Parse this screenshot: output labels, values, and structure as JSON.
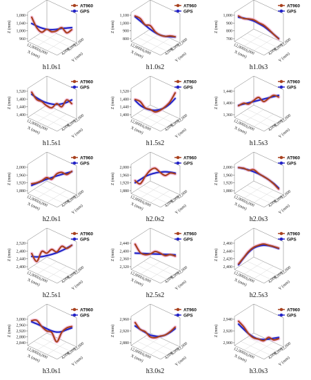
{
  "legend": {
    "series_a": "AT960",
    "series_b": "GPS"
  },
  "colors": {
    "at960": "#a8411e",
    "gps": "#2323c8",
    "halo": "#f4b7d9",
    "box": "#777777"
  },
  "chart_data": [
    {
      "type": "line",
      "title": "h1.0s1",
      "zlabel": "Z (mm)",
      "xlabel": "X (mm)",
      "ylabel": "Y (mm)",
      "zticks": [
        "1,080",
        "1,040",
        "1,000",
        "960"
      ],
      "xticks": [
        "12,000",
        "16,000"
      ],
      "yticks": [
        "12,000",
        "8,000",
        "4,000"
      ],
      "zlim": [
        960,
        1080
      ],
      "series": [
        {
          "name": "AT960",
          "values": [
            1070,
            1020,
            998,
            1012,
            1000,
            1005,
            1020,
            995,
            1010
          ]
        },
        {
          "name": "GPS",
          "values": [
            1040,
            1028,
            1018,
            1012,
            1010,
            1012,
            1016,
            1018,
            1020
          ]
        }
      ]
    },
    {
      "type": "line",
      "title": "h1.0s2",
      "zlabel": "Z (mm)",
      "xlabel": "X (mm)",
      "ylabel": "Y (mm)",
      "zticks": [
        "1,100",
        "1,000",
        "900",
        "800"
      ],
      "xticks": [
        "12,000",
        "16,000"
      ],
      "yticks": [
        "12,000",
        "8,000",
        "4,000"
      ],
      "zlim": [
        800,
        1100
      ],
      "series": [
        {
          "name": "AT960",
          "values": [
            1090,
            1060,
            985,
            975,
            900,
            860,
            845,
            850,
            840
          ]
        },
        {
          "name": "GPS",
          "values": [
            1080,
            1030,
            980,
            930,
            890,
            860,
            845,
            840,
            838
          ]
        }
      ]
    },
    {
      "type": "line",
      "title": "h1.0s3",
      "zlabel": "Z (mm)",
      "xlabel": "X (mm)",
      "ylabel": "Y (mm)",
      "zticks": [
        "1,000",
        "900",
        "800",
        "700"
      ],
      "xticks": [
        "12,000",
        "16,000"
      ],
      "yticks": [
        "12,000",
        "8,000",
        "4,000"
      ],
      "zlim": [
        700,
        1000
      ],
      "series": [
        {
          "name": "AT960",
          "values": [
            990,
            960,
            955,
            945,
            910,
            880,
            830,
            770,
            715
          ]
        },
        {
          "name": "GPS",
          "values": [
            975,
            965,
            950,
            930,
            900,
            865,
            820,
            770,
            720
          ]
        }
      ]
    },
    {
      "type": "line",
      "title": "h1.5s1",
      "zlabel": "Z (mm)",
      "xlabel": "X (mm)",
      "ylabel": "Y (mm)",
      "zticks": [
        "1,520",
        "1,480",
        "1,440",
        "1,400"
      ],
      "xticks": [
        "12,000",
        "16,000"
      ],
      "yticks": [
        "12,000",
        "8,000",
        "4,000"
      ],
      "zlim": [
        1400,
        1520
      ],
      "series": [
        {
          "name": "AT960",
          "values": [
            1515,
            1480,
            1470,
            1450,
            1440,
            1460,
            1445,
            1478,
            1460
          ]
        },
        {
          "name": "GPS",
          "values": [
            1505,
            1488,
            1474,
            1464,
            1458,
            1456,
            1459,
            1466,
            1478
          ]
        }
      ]
    },
    {
      "type": "line",
      "title": "h1.5s2",
      "zlabel": "Z (mm)",
      "xlabel": "X (mm)",
      "ylabel": "Y (mm)",
      "zticks": [
        "1,520",
        "1,480",
        "1,440",
        "1,400"
      ],
      "xticks": [
        "12,000",
        "16,000"
      ],
      "yticks": [
        "12,000",
        "8,000",
        "4,000"
      ],
      "zlim": [
        1400,
        1520
      ],
      "series": [
        {
          "name": "AT960",
          "values": [
            1480,
            1470,
            1440,
            1432,
            1420,
            1428,
            1445,
            1470,
            1512
          ]
        },
        {
          "name": "GPS",
          "values": [
            1475,
            1452,
            1438,
            1430,
            1428,
            1432,
            1442,
            1460,
            1485
          ]
        }
      ]
    },
    {
      "type": "line",
      "title": "h1.5s3",
      "zlabel": "Z (mm)",
      "xlabel": "X (mm)",
      "ylabel": "Y (mm)",
      "zticks": [
        "1,440",
        "1,400",
        "1,360"
      ],
      "xticks": [
        "12,000",
        "16,000"
      ],
      "yticks": [
        "12,000",
        "8,000",
        "4,000"
      ],
      "zlim": [
        1340,
        1460
      ],
      "series": [
        {
          "name": "AT960",
          "values": [
            1390,
            1402,
            1398,
            1415,
            1430,
            1410,
            1425,
            1440,
            1432
          ]
        },
        {
          "name": "GPS",
          "values": [
            1392,
            1398,
            1404,
            1410,
            1416,
            1422,
            1428,
            1434,
            1440
          ]
        }
      ]
    },
    {
      "type": "line",
      "title": "h2.0s1",
      "zlabel": "Z (mm)",
      "xlabel": "X (mm)",
      "ylabel": "Y (mm)",
      "zticks": [
        "2,000",
        "1,960",
        "1,920",
        "1,880"
      ],
      "xticks": [
        "12,000",
        "16,000"
      ],
      "yticks": [
        "12,000",
        "8,000",
        "4,000"
      ],
      "zlim": [
        1880,
        2000
      ],
      "series": [
        {
          "name": "AT960",
          "values": [
            1920,
            1925,
            1935,
            1950,
            1942,
            1968,
            1975,
            1965,
            1980
          ]
        },
        {
          "name": "GPS",
          "values": [
            1912,
            1922,
            1932,
            1942,
            1950,
            1958,
            1965,
            1972,
            1978
          ]
        }
      ]
    },
    {
      "type": "line",
      "title": "h2.0s2",
      "zlabel": "Z (mm)",
      "xlabel": "X (mm)",
      "ylabel": "Y (mm)",
      "zticks": [
        "2,000",
        "1,960",
        "1,920",
        "1,880"
      ],
      "xticks": [
        "12,000",
        "16,000"
      ],
      "yticks": [
        "12,000",
        "8,000",
        "4,000"
      ],
      "zlim": [
        1880,
        2000
      ],
      "series": [
        {
          "name": "AT960",
          "values": [
            1935,
            1920,
            1955,
            1985,
            1995,
            1975,
            1960,
            1972,
            1968
          ]
        },
        {
          "name": "GPS",
          "values": [
            1925,
            1940,
            1955,
            1965,
            1972,
            1976,
            1978,
            1976,
            1972
          ]
        }
      ]
    },
    {
      "type": "line",
      "title": "h2.0s3",
      "zlabel": "Z (mm)",
      "xlabel": "X (mm)",
      "ylabel": "Y (mm)",
      "zticks": [
        "2,000",
        "1,960",
        "1,920",
        "1,880"
      ],
      "xticks": [
        "12,000",
        "16,000"
      ],
      "yticks": [
        "12,000",
        "8,000",
        "4,000"
      ],
      "zlim": [
        1880,
        2000
      ],
      "series": [
        {
          "name": "AT960",
          "values": [
            1998,
            1995,
            1985,
            1988,
            1970,
            1955,
            1940,
            1920,
            1895
          ]
        },
        {
          "name": "GPS",
          "values": [
            1998,
            1993,
            1987,
            1978,
            1968,
            1955,
            1940,
            1922,
            1900
          ]
        }
      ]
    },
    {
      "type": "line",
      "title": "h2.5s1",
      "zlabel": "Z (mm)",
      "xlabel": "X (mm)",
      "ylabel": "Y (mm)",
      "zticks": [
        "2,520",
        "2,480",
        "2,440",
        "2,400"
      ],
      "xticks": [
        "12,000",
        "16,000"
      ],
      "yticks": [
        "12,000",
        "8,000",
        "4,000"
      ],
      "zlim": [
        2400,
        2520
      ],
      "series": [
        {
          "name": "AT960",
          "values": [
            2470,
            2432,
            2480,
            2472,
            2490,
            2478,
            2505,
            2495,
            2510
          ]
        },
        {
          "name": "GPS",
          "values": [
            2456,
            2454,
            2455,
            2460,
            2466,
            2474,
            2484,
            2496,
            2510
          ]
        }
      ]
    },
    {
      "type": "line",
      "title": "h2.5s2",
      "zlabel": "Z (mm)",
      "xlabel": "X (mm)",
      "ylabel": "Y (mm)",
      "zticks": [
        "2,440",
        "2,400",
        "2,360",
        "2,320"
      ],
      "xticks": [
        "12,000",
        "16,000"
      ],
      "yticks": [
        "12,000",
        "8,000",
        "4,000"
      ],
      "zlim": [
        2320,
        2440
      ],
      "series": [
        {
          "name": "AT960",
          "values": [
            2435,
            2395,
            2385,
            2388,
            2400,
            2392,
            2380,
            2385,
            2378
          ]
        },
        {
          "name": "GPS",
          "values": [
            2392,
            2391,
            2390,
            2389,
            2388,
            2387,
            2386,
            2385,
            2384
          ]
        }
      ]
    },
    {
      "type": "line",
      "title": "h2.5s3",
      "zlabel": "Z (mm)",
      "xlabel": "X (mm)",
      "ylabel": "Y (mm)",
      "zticks": [
        "2,460",
        "2,440",
        "2,420",
        "2,400"
      ],
      "xticks": [
        "12,000",
        "16,000"
      ],
      "yticks": [
        "12,000",
        "8,000",
        "4,000"
      ],
      "zlim": [
        2400,
        2460
      ],
      "series": [
        {
          "name": "AT960",
          "values": [
            2410,
            2425,
            2440,
            2450,
            2455,
            2458,
            2455,
            2452,
            2448
          ]
        },
        {
          "name": "GPS",
          "values": [
            2408,
            2424,
            2438,
            2448,
            2453,
            2455,
            2454,
            2451,
            2447
          ]
        }
      ]
    },
    {
      "type": "line",
      "title": "h3.0s1",
      "zlabel": "Z (mm)",
      "xlabel": "X (mm)",
      "ylabel": "Y (mm)",
      "zticks": [
        "3,000",
        "2,960",
        "2,920",
        "2,880",
        "2,840"
      ],
      "xticks": [
        "12,000",
        "16,000"
      ],
      "yticks": [
        "12,000",
        "8,000",
        "4,000"
      ],
      "zlim": [
        2840,
        3010
      ],
      "series": [
        {
          "name": "AT960",
          "values": [
            3000,
            3002,
            2960,
            2930,
            2920,
            2855,
            2920,
            2950,
            2960
          ]
        },
        {
          "name": "GPS",
          "values": [
            2992,
            2978,
            2962,
            2945,
            2930,
            2922,
            2925,
            2938,
            2950
          ]
        }
      ]
    },
    {
      "type": "line",
      "title": "h3.0s2",
      "zlabel": "Z (mm)",
      "xlabel": "X (mm)",
      "ylabel": "Y (mm)",
      "zticks": [
        "2,960",
        "2,920",
        "2,880"
      ],
      "xticks": [
        "12,000",
        "16,000"
      ],
      "yticks": [
        "12,000",
        "8,000",
        "4,000"
      ],
      "zlim": [
        2870,
        2980
      ],
      "series": [
        {
          "name": "AT960",
          "values": [
            2965,
            2935,
            2925,
            2902,
            2898,
            2905,
            2910,
            2925,
            2945
          ]
        },
        {
          "name": "GPS",
          "values": [
            2950,
            2935,
            2922,
            2910,
            2905,
            2904,
            2910,
            2922,
            2938
          ]
        }
      ]
    },
    {
      "type": "line",
      "title": "h3.0s3",
      "zlabel": "Z (mm)",
      "xlabel": "X (mm)",
      "ylabel": "Y (mm)",
      "zticks": [
        "2,940",
        "2,920",
        "2,900"
      ],
      "xticks": [
        "12,000",
        "16,000"
      ],
      "yticks": [
        "12,000",
        "8,000",
        "4,000"
      ],
      "zlim": [
        2890,
        2950
      ],
      "series": [
        {
          "name": "AT960",
          "values": [
            2945,
            2932,
            2915,
            2905,
            2902,
            2898,
            2906,
            2900,
            2903
          ]
        },
        {
          "name": "GPS",
          "values": [
            2938,
            2926,
            2915,
            2907,
            2902,
            2901,
            2902,
            2904,
            2906
          ]
        }
      ]
    }
  ]
}
